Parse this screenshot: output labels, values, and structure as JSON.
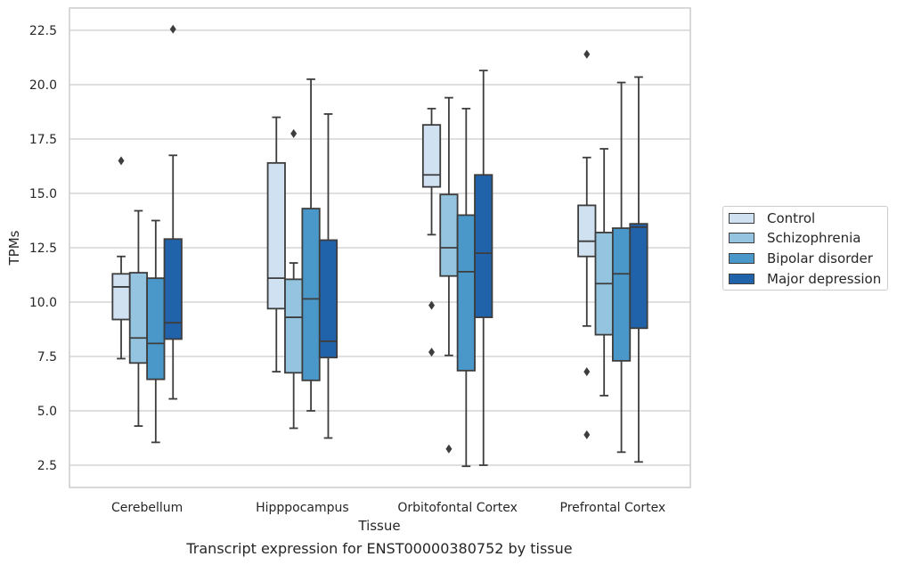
{
  "caption": "Transcript expression for ENST00000380752 by tissue",
  "chart_data": {
    "type": "box",
    "xlabel": "Tissue",
    "ylabel": "TPMs",
    "ylim": [
      1.5,
      23.6
    ],
    "yticks": [
      2.5,
      5.0,
      7.5,
      10.0,
      12.5,
      15.0,
      17.5,
      20.0,
      22.5
    ],
    "ytick_labels": [
      "2.5",
      "5.0",
      "7.5",
      "10.0",
      "12.5",
      "15.0",
      "17.5",
      "20.0",
      "22.5"
    ],
    "grid": "horizontal",
    "legend_position": "outside-right",
    "categories": [
      "Cerebellum",
      "Hipppocampus",
      "Orbitofontal Cortex",
      "Prefrontal Cortex"
    ],
    "series": [
      {
        "name": "Control",
        "color": "#d0e1f2",
        "boxes": [
          {
            "whislo": 7.4,
            "q1": 9.2,
            "med": 10.7,
            "q3": 11.3,
            "whishi": 12.1,
            "fliers": [
              16.5
            ]
          },
          {
            "whislo": 6.8,
            "q1": 9.7,
            "med": 11.1,
            "q3": 16.4,
            "whishi": 18.5,
            "fliers": []
          },
          {
            "whislo": 13.1,
            "q1": 15.3,
            "med": 15.85,
            "q3": 18.15,
            "whishi": 18.9,
            "fliers": [
              9.85,
              7.7
            ]
          },
          {
            "whislo": 8.9,
            "q1": 12.1,
            "med": 12.8,
            "q3": 14.45,
            "whishi": 16.65,
            "fliers": [
              21.4,
              6.8,
              3.9
            ]
          }
        ]
      },
      {
        "name": "Schizophrenia",
        "color": "#94c4df",
        "boxes": [
          {
            "whislo": 4.3,
            "q1": 7.2,
            "med": 8.35,
            "q3": 11.35,
            "whishi": 14.2,
            "fliers": []
          },
          {
            "whislo": 4.2,
            "q1": 6.75,
            "med": 9.3,
            "q3": 11.05,
            "whishi": 11.8,
            "fliers": [
              17.75
            ]
          },
          {
            "whislo": 7.55,
            "q1": 11.2,
            "med": 12.5,
            "q3": 14.95,
            "whishi": 19.4,
            "fliers": [
              3.25
            ]
          },
          {
            "whislo": 5.7,
            "q1": 8.5,
            "med": 10.85,
            "q3": 13.2,
            "whishi": 17.05,
            "fliers": []
          }
        ]
      },
      {
        "name": "Bipolar disorder",
        "color": "#4a98c9",
        "boxes": [
          {
            "whislo": 3.55,
            "q1": 6.45,
            "med": 8.1,
            "q3": 11.1,
            "whishi": 13.75,
            "fliers": []
          },
          {
            "whislo": 5.0,
            "q1": 6.4,
            "med": 10.15,
            "q3": 14.3,
            "whishi": 20.25,
            "fliers": []
          },
          {
            "whislo": 2.45,
            "q1": 6.85,
            "med": 11.4,
            "q3": 14.0,
            "whishi": 18.9,
            "fliers": []
          },
          {
            "whislo": 3.1,
            "q1": 7.3,
            "med": 11.3,
            "q3": 13.4,
            "whishi": 20.1,
            "fliers": []
          }
        ]
      },
      {
        "name": "Major depression",
        "color": "#2163aa",
        "boxes": [
          {
            "whislo": 5.55,
            "q1": 8.3,
            "med": 9.05,
            "q3": 12.9,
            "whishi": 16.75,
            "fliers": [
              22.55
            ]
          },
          {
            "whislo": 3.75,
            "q1": 7.45,
            "med": 8.2,
            "q3": 12.85,
            "whishi": 18.65,
            "fliers": []
          },
          {
            "whislo": 2.5,
            "q1": 9.3,
            "med": 12.25,
            "q3": 15.85,
            "whishi": 20.65,
            "fliers": []
          },
          {
            "whislo": 2.65,
            "q1": 8.8,
            "med": 13.45,
            "q3": 13.6,
            "whishi": 20.35,
            "fliers": []
          }
        ]
      }
    ]
  }
}
